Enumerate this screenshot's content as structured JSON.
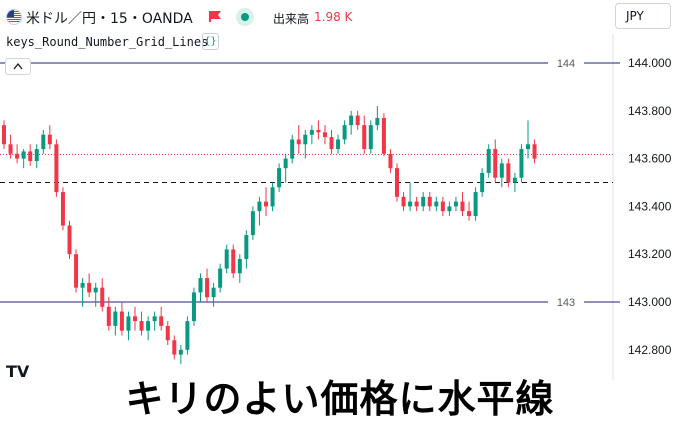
{
  "header": {
    "symbol": "米ドル／円・15・OANDA",
    "volume_label": "出来高",
    "volume_value": "1.98 K",
    "currency": "JPY"
  },
  "indicator": {
    "name": "keys_Round_Number_Grid_Lines",
    "badge": "{}"
  },
  "lines": {
    "upper_label": "144",
    "lower_label": "143"
  },
  "axis": {
    "ticks": [
      "144.000",
      "143.800",
      "143.600",
      "143.400",
      "143.200",
      "143.000",
      "142.800"
    ]
  },
  "logo": "TV",
  "caption": "キリのよい価格に水平線",
  "colors": {
    "up": "#089981",
    "down": "#f23645",
    "round_line": "#1a237e",
    "dashed_line": "#131722",
    "price_line": "#f23645"
  },
  "chart_data": {
    "type": "candlestick",
    "y_range": [
      142.75,
      144.06
    ],
    "horizontal_lines": [
      {
        "price": 144.0,
        "label": "144",
        "style": "solid"
      },
      {
        "price": 143.0,
        "label": "143",
        "style": "solid"
      },
      {
        "price": 143.5,
        "style": "dashed"
      },
      {
        "price": 143.617,
        "style": "dotted"
      }
    ],
    "candles": [
      [
        143.74,
        143.76,
        143.64,
        143.66
      ],
      [
        143.66,
        143.7,
        143.6,
        143.62
      ],
      [
        143.62,
        143.66,
        143.58,
        143.6
      ],
      [
        143.6,
        143.64,
        143.56,
        143.63
      ],
      [
        143.63,
        143.66,
        143.57,
        143.59
      ],
      [
        143.59,
        143.66,
        143.56,
        143.64
      ],
      [
        143.64,
        143.72,
        143.62,
        143.7
      ],
      [
        143.7,
        143.74,
        143.64,
        143.66
      ],
      [
        143.66,
        143.68,
        143.44,
        143.46
      ],
      [
        143.46,
        143.48,
        143.3,
        143.32
      ],
      [
        143.32,
        143.34,
        143.18,
        143.2
      ],
      [
        143.2,
        143.22,
        143.04,
        143.06
      ],
      [
        143.06,
        143.1,
        142.98,
        143.08
      ],
      [
        143.08,
        143.12,
        143.02,
        143.04
      ],
      [
        143.04,
        143.08,
        142.98,
        143.06
      ],
      [
        143.06,
        143.1,
        142.96,
        142.98
      ],
      [
        142.98,
        143.02,
        142.88,
        142.9
      ],
      [
        142.9,
        142.98,
        142.86,
        142.96
      ],
      [
        142.96,
        143.0,
        142.86,
        142.88
      ],
      [
        142.88,
        142.96,
        142.84,
        142.94
      ],
      [
        142.94,
        142.98,
        142.88,
        142.92
      ],
      [
        142.92,
        142.96,
        142.86,
        142.88
      ],
      [
        142.88,
        142.94,
        142.84,
        142.92
      ],
      [
        142.92,
        142.96,
        142.88,
        142.94
      ],
      [
        142.94,
        142.98,
        142.88,
        142.9
      ],
      [
        142.9,
        142.92,
        142.82,
        142.84
      ],
      [
        142.84,
        142.86,
        142.76,
        142.78
      ],
      [
        142.78,
        142.82,
        142.74,
        142.8
      ],
      [
        142.8,
        142.94,
        142.78,
        142.92
      ],
      [
        142.92,
        143.06,
        142.9,
        143.04
      ],
      [
        143.04,
        143.12,
        143.0,
        143.1
      ],
      [
        143.1,
        143.14,
        143.0,
        143.02
      ],
      [
        143.02,
        143.08,
        142.98,
        143.06
      ],
      [
        143.06,
        143.16,
        143.04,
        143.14
      ],
      [
        143.14,
        143.24,
        143.12,
        143.22
      ],
      [
        143.22,
        143.24,
        143.1,
        143.12
      ],
      [
        143.12,
        143.2,
        143.08,
        143.18
      ],
      [
        143.18,
        143.3,
        143.14,
        143.28
      ],
      [
        143.28,
        143.4,
        143.26,
        143.38
      ],
      [
        143.38,
        143.44,
        143.32,
        143.42
      ],
      [
        143.42,
        143.48,
        143.36,
        143.4
      ],
      [
        143.4,
        143.5,
        143.38,
        143.48
      ],
      [
        143.48,
        143.58,
        143.46,
        143.56
      ],
      [
        143.56,
        143.62,
        143.5,
        143.6
      ],
      [
        143.6,
        143.7,
        143.58,
        143.68
      ],
      [
        143.68,
        143.74,
        143.62,
        143.66
      ],
      [
        143.66,
        143.72,
        143.6,
        143.7
      ],
      [
        143.7,
        143.74,
        143.66,
        143.72
      ],
      [
        143.72,
        143.76,
        143.68,
        143.71
      ],
      [
        143.71,
        143.74,
        143.66,
        143.69
      ],
      [
        143.69,
        143.72,
        143.62,
        143.64
      ],
      [
        143.64,
        143.7,
        143.62,
        143.68
      ],
      [
        143.68,
        143.76,
        143.66,
        143.74
      ],
      [
        143.74,
        143.8,
        143.7,
        143.78
      ],
      [
        143.78,
        143.8,
        143.72,
        143.74
      ],
      [
        143.74,
        143.78,
        143.62,
        143.64
      ],
      [
        143.64,
        143.76,
        143.62,
        143.74
      ],
      [
        143.74,
        143.82,
        143.72,
        143.77
      ],
      [
        143.77,
        143.79,
        143.61,
        143.62
      ],
      [
        143.62,
        143.64,
        143.54,
        143.56
      ],
      [
        143.56,
        143.58,
        143.42,
        143.44
      ],
      [
        143.44,
        143.46,
        143.38,
        143.4
      ],
      [
        143.4,
        143.5,
        143.38,
        143.42
      ],
      [
        143.42,
        143.44,
        143.38,
        143.4
      ],
      [
        143.4,
        143.46,
        143.38,
        143.44
      ],
      [
        143.44,
        143.46,
        143.38,
        143.4
      ],
      [
        143.4,
        143.44,
        143.38,
        143.42
      ],
      [
        143.42,
        143.44,
        143.36,
        143.38
      ],
      [
        143.38,
        143.42,
        143.36,
        143.4
      ],
      [
        143.4,
        143.44,
        143.38,
        143.42
      ],
      [
        143.42,
        143.46,
        143.36,
        143.38
      ],
      [
        143.38,
        143.42,
        143.34,
        143.36
      ],
      [
        143.36,
        143.48,
        143.34,
        143.46
      ],
      [
        143.46,
        143.56,
        143.44,
        143.54
      ],
      [
        143.54,
        143.66,
        143.52,
        143.64
      ],
      [
        143.64,
        143.68,
        143.5,
        143.52
      ],
      [
        143.52,
        143.6,
        143.48,
        143.58
      ],
      [
        143.58,
        143.6,
        143.48,
        143.5
      ],
      [
        143.5,
        143.54,
        143.46,
        143.52
      ],
      [
        143.52,
        143.66,
        143.5,
        143.64
      ],
      [
        143.64,
        143.76,
        143.6,
        143.66
      ],
      [
        143.66,
        143.68,
        143.58,
        143.6
      ]
    ]
  }
}
